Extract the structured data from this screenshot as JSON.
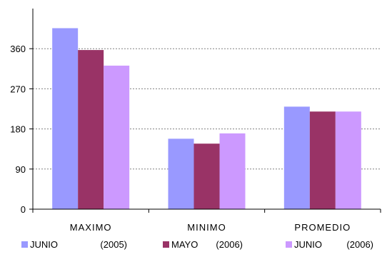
{
  "chart_data": {
    "type": "bar",
    "categories": [
      "MAXIMO",
      "MINIMO",
      "PROMEDIO"
    ],
    "series": [
      {
        "name": "JUNIO",
        "period": "(2005)",
        "values": [
          406,
          158,
          230
        ],
        "color": "#9999ff"
      },
      {
        "name": "MAYO",
        "period": "(2006)",
        "values": [
          357,
          147,
          219
        ],
        "color": "#993366"
      },
      {
        "name": "JUNIO",
        "period": "(2006)",
        "values": [
          322,
          170,
          219
        ],
        "color": "#cc99ff"
      }
    ],
    "yticks": [
      0,
      90,
      180,
      270,
      360
    ],
    "ylim": [
      0,
      450
    ],
    "grid": true,
    "grid_color": "#808080",
    "legend_position": "bottom",
    "title": "",
    "xlabel": "",
    "ylabel": ""
  }
}
